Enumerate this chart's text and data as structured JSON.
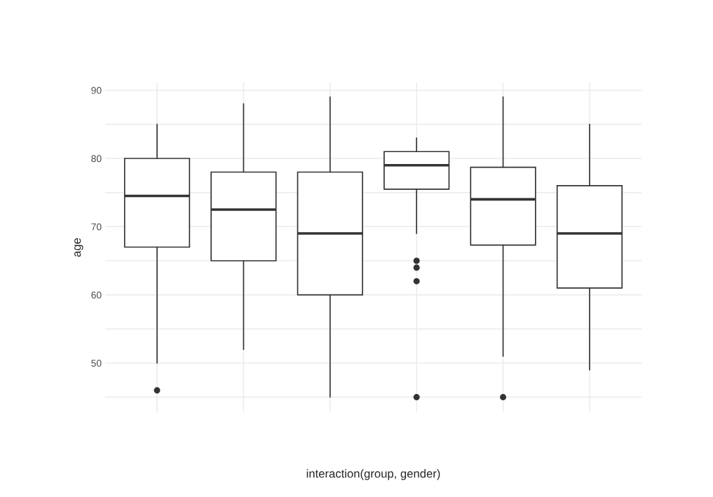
{
  "chart_data": {
    "type": "box",
    "xlabel": "interaction(group, gender)",
    "ylabel": "age",
    "categories": [
      null,
      null,
      null,
      null,
      null,
      null
    ],
    "boxes": [
      {
        "low": 50,
        "q1": 67,
        "median": 74.5,
        "q3": 80,
        "high": 85,
        "outliers": [
          46
        ]
      },
      {
        "low": 52,
        "q1": 65,
        "median": 72.5,
        "q3": 78,
        "high": 88
      },
      {
        "low": 45,
        "q1": 60,
        "median": 69,
        "q3": 78,
        "high": 89
      },
      {
        "low": 69,
        "q1": 75.5,
        "median": 79,
        "q3": 81,
        "high": 83,
        "outliers": [
          65,
          64,
          62,
          45
        ]
      },
      {
        "low": 51,
        "q1": 67.3,
        "median": 74,
        "q3": 78.7,
        "high": 89,
        "outliers": [
          45
        ]
      },
      {
        "low": 49,
        "q1": 61,
        "median": 69,
        "q3": 76,
        "high": 85
      }
    ],
    "color": "#333333",
    "ylim": [
      42.8,
      91.1
    ],
    "yticks": [
      {
        "value": 45,
        "label": null
      },
      50,
      {
        "value": 55,
        "label": null
      },
      60,
      {
        "value": 65,
        "label": null
      },
      70,
      {
        "value": 75,
        "label": null
      },
      80,
      {
        "value": 85,
        "label": null
      },
      90
    ],
    "grid": true
  }
}
